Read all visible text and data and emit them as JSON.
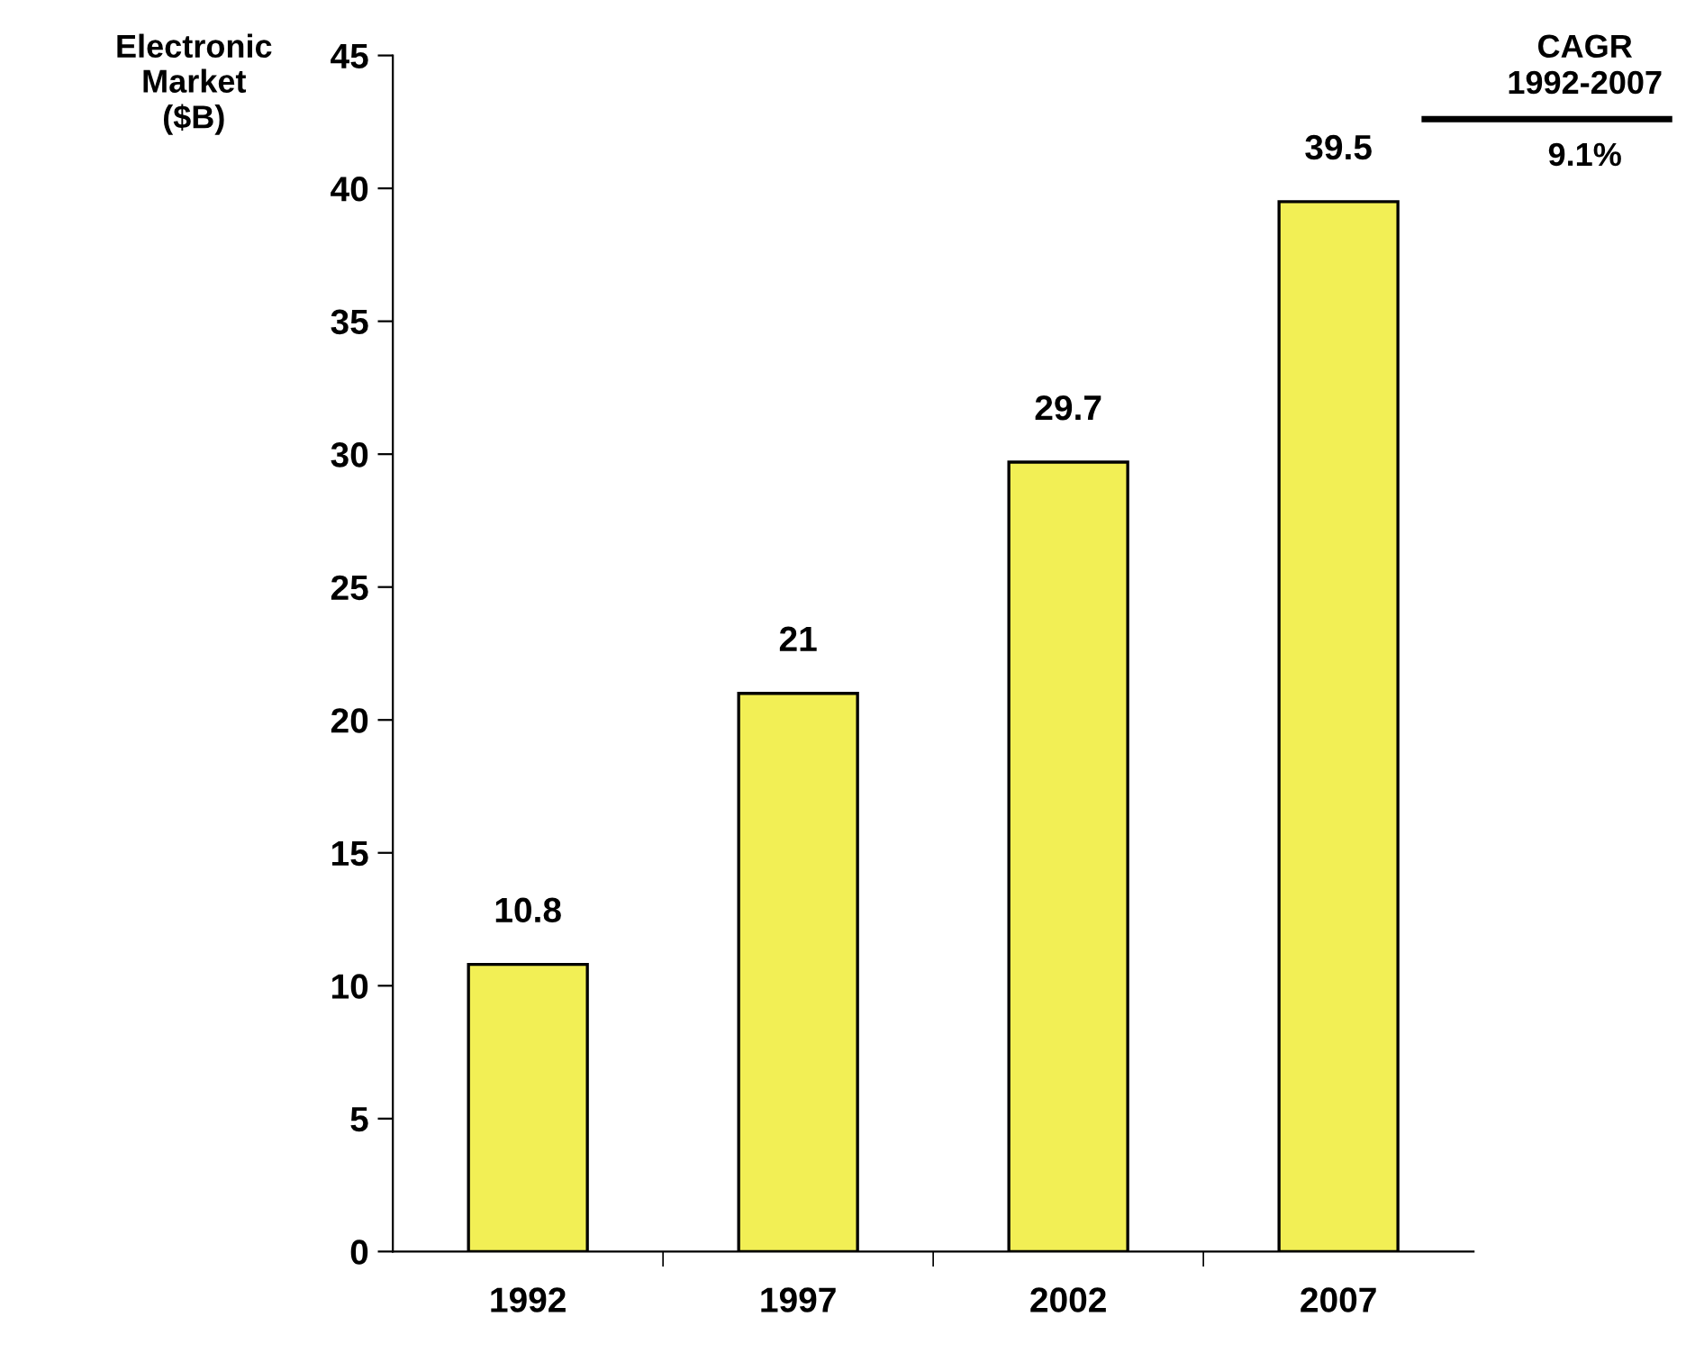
{
  "chart_data": {
    "type": "bar",
    "ylabel": "Electronic\nMarket\n($B)",
    "categories": [
      "1992",
      "1997",
      "2002",
      "2007"
    ],
    "values": [
      10.8,
      21,
      29.7,
      39.5
    ],
    "color": "#f2ef55",
    "ylim": [
      0,
      45
    ],
    "yticks": [
      0,
      5,
      10,
      15,
      20,
      25,
      30,
      35,
      40,
      45
    ],
    "data_labels": true,
    "grid": false,
    "annotations": [
      "CAGR\n1992-2007",
      "9.1%"
    ]
  }
}
